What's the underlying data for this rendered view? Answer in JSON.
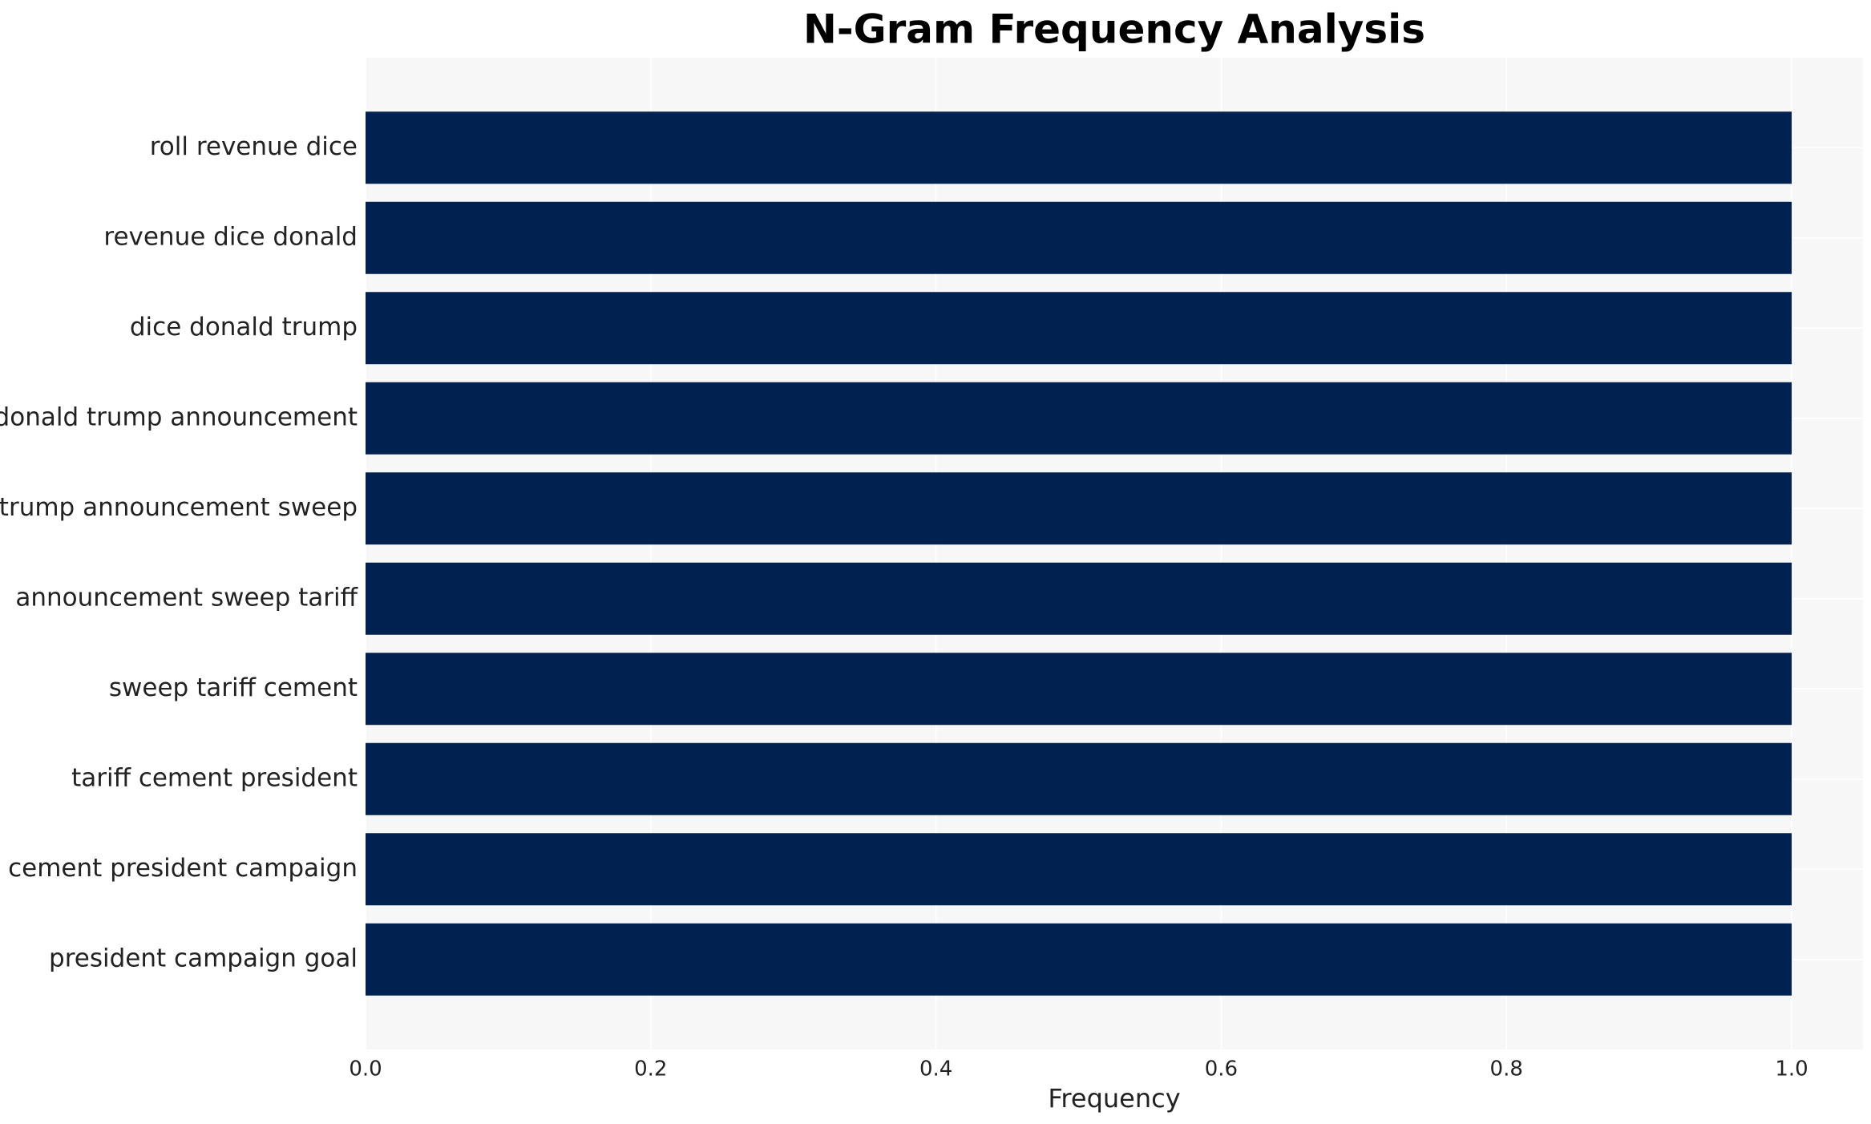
{
  "chart_data": {
    "type": "barh",
    "title": "N-Gram Frequency Analysis",
    "x_label": "Frequency",
    "categories": [
      "roll revenue dice",
      "revenue dice donald",
      "dice donald trump",
      "donald trump announcement",
      "trump announcement sweep",
      "announcement sweep tariff",
      "sweep tariff cement",
      "tariff cement president",
      "cement president campaign",
      "president campaign goal"
    ],
    "values": [
      1,
      1,
      1,
      1,
      1,
      1,
      1,
      1,
      1,
      1
    ],
    "color": "#012251",
    "xlim": [
      0,
      1.05
    ],
    "xticks": [
      {
        "value": 0,
        "label": "0.0"
      },
      0.2,
      0.4,
      0.6,
      0.8,
      {
        "value": 1,
        "label": "1.0"
      }
    ],
    "grid": true
  }
}
